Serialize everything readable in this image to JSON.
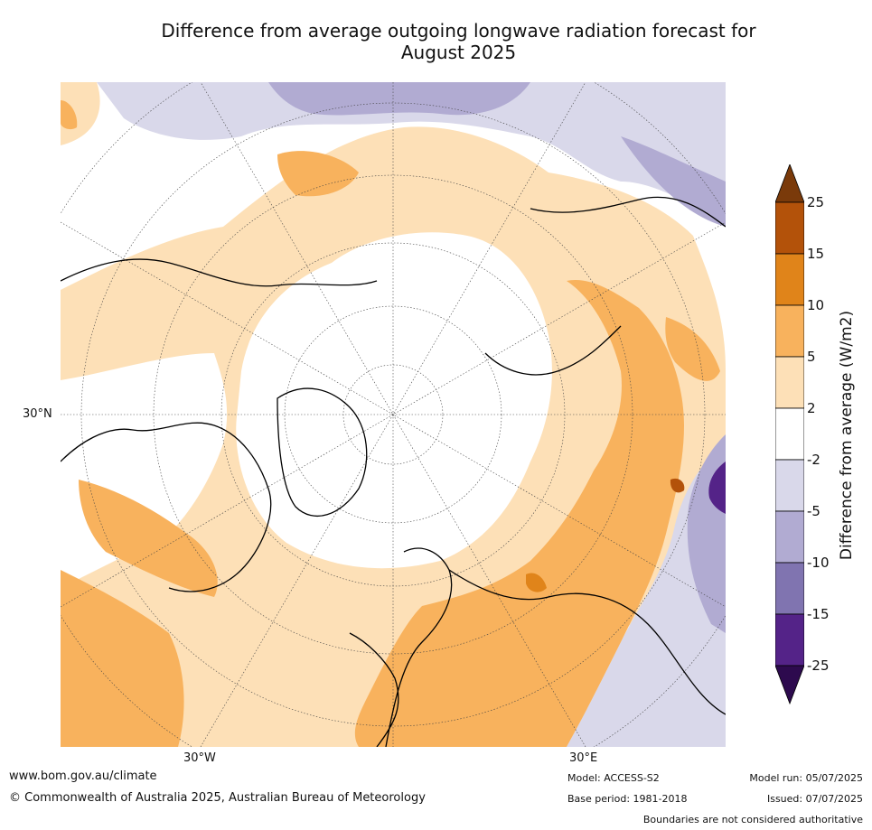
{
  "title": {
    "line1": "Difference from average outgoing longwave radiation forecast for",
    "line2": "August 2025"
  },
  "map": {
    "projection": "north polar stereographic",
    "lat_label": "30°N",
    "lon_labels": [
      "30°W",
      "30°E"
    ]
  },
  "legend": {
    "title": "Difference from average (W/m2)",
    "ticks": [
      "25",
      "15",
      "10",
      "5",
      "2",
      "-2",
      "-5",
      "-10",
      "-15",
      "-25"
    ],
    "colors": {
      "above_25": "#7a3a0a",
      "15_25": "#b3520a",
      "10_15": "#e0841a",
      "5_10": "#f8b25d",
      "2_5": "#fde0b7",
      "neutral": "#ffffff",
      "m2_m5": "#d9d8ea",
      "m5_m10": "#b1abd2",
      "m10_m15": "#8074b0",
      "m15_m25": "#542388",
      "below_m25": "#2d0a4e"
    }
  },
  "footer": {
    "website": "www.bom.gov.au/climate",
    "copyright": "© Commonwealth of Australia 2025, Australian Bureau of Meteorology",
    "model": "Model: ACCESS-S2",
    "base_period": "Base period: 1981-2018",
    "model_run": "Model run: 05/07/2025",
    "issued": "Issued: 07/07/2025",
    "disclaimer": "Boundaries are not considered authoritative"
  }
}
